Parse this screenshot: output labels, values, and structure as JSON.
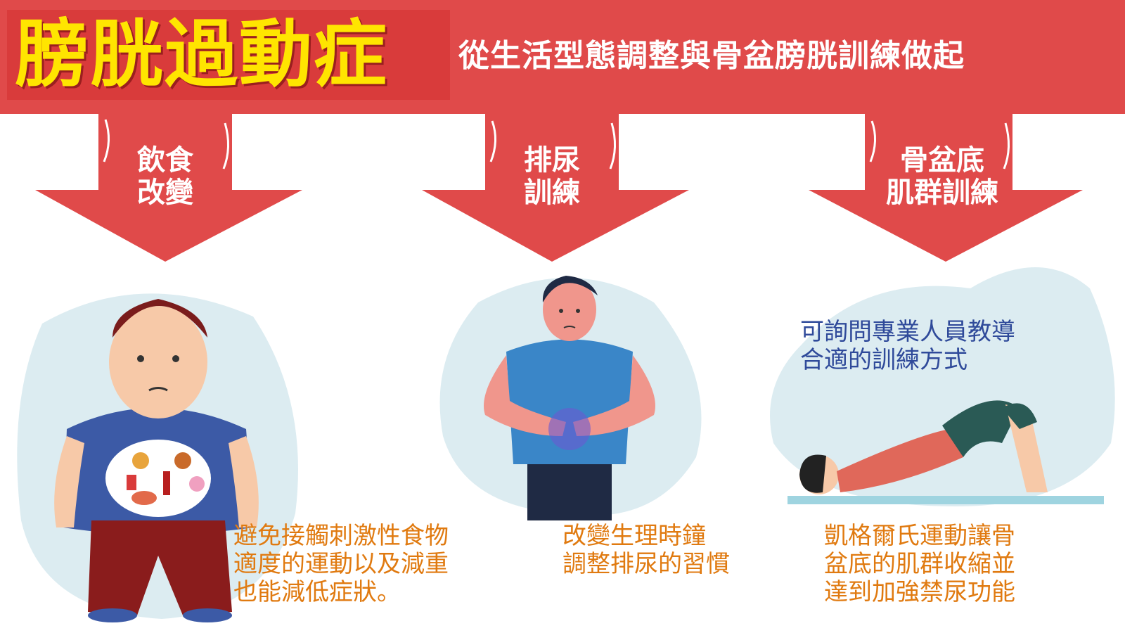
{
  "header": {
    "title": "膀胱過動症",
    "subtitle": "從生活型態調整與骨盆膀胱訓練做起"
  },
  "sections": [
    {
      "label_lines": [
        "飲食",
        "改變"
      ],
      "caption_lines": [
        "避免接觸刺激性食物",
        "適度的運動以及減重",
        "也能減低症狀。"
      ]
    },
    {
      "label_lines": [
        "排尿",
        "訓練"
      ],
      "caption_lines": [
        "改變生理時鐘",
        "調整排尿的習慣"
      ]
    },
    {
      "label_lines": [
        "骨盆底",
        "肌群訓練"
      ],
      "note_lines": [
        "可詢問專業人員教導",
        "合適的訓練方式"
      ],
      "caption_lines": [
        "凱格爾氏運動讓骨",
        "盆底的肌群收縮並",
        "達到加強禁尿功能"
      ]
    }
  ],
  "colors": {
    "banner_red": "#e04a4a",
    "title_yellow": "#ffe500",
    "caption_orange": "#e07a10",
    "note_blue": "#2f4a9a",
    "blob_blue": "#dcecf1"
  }
}
